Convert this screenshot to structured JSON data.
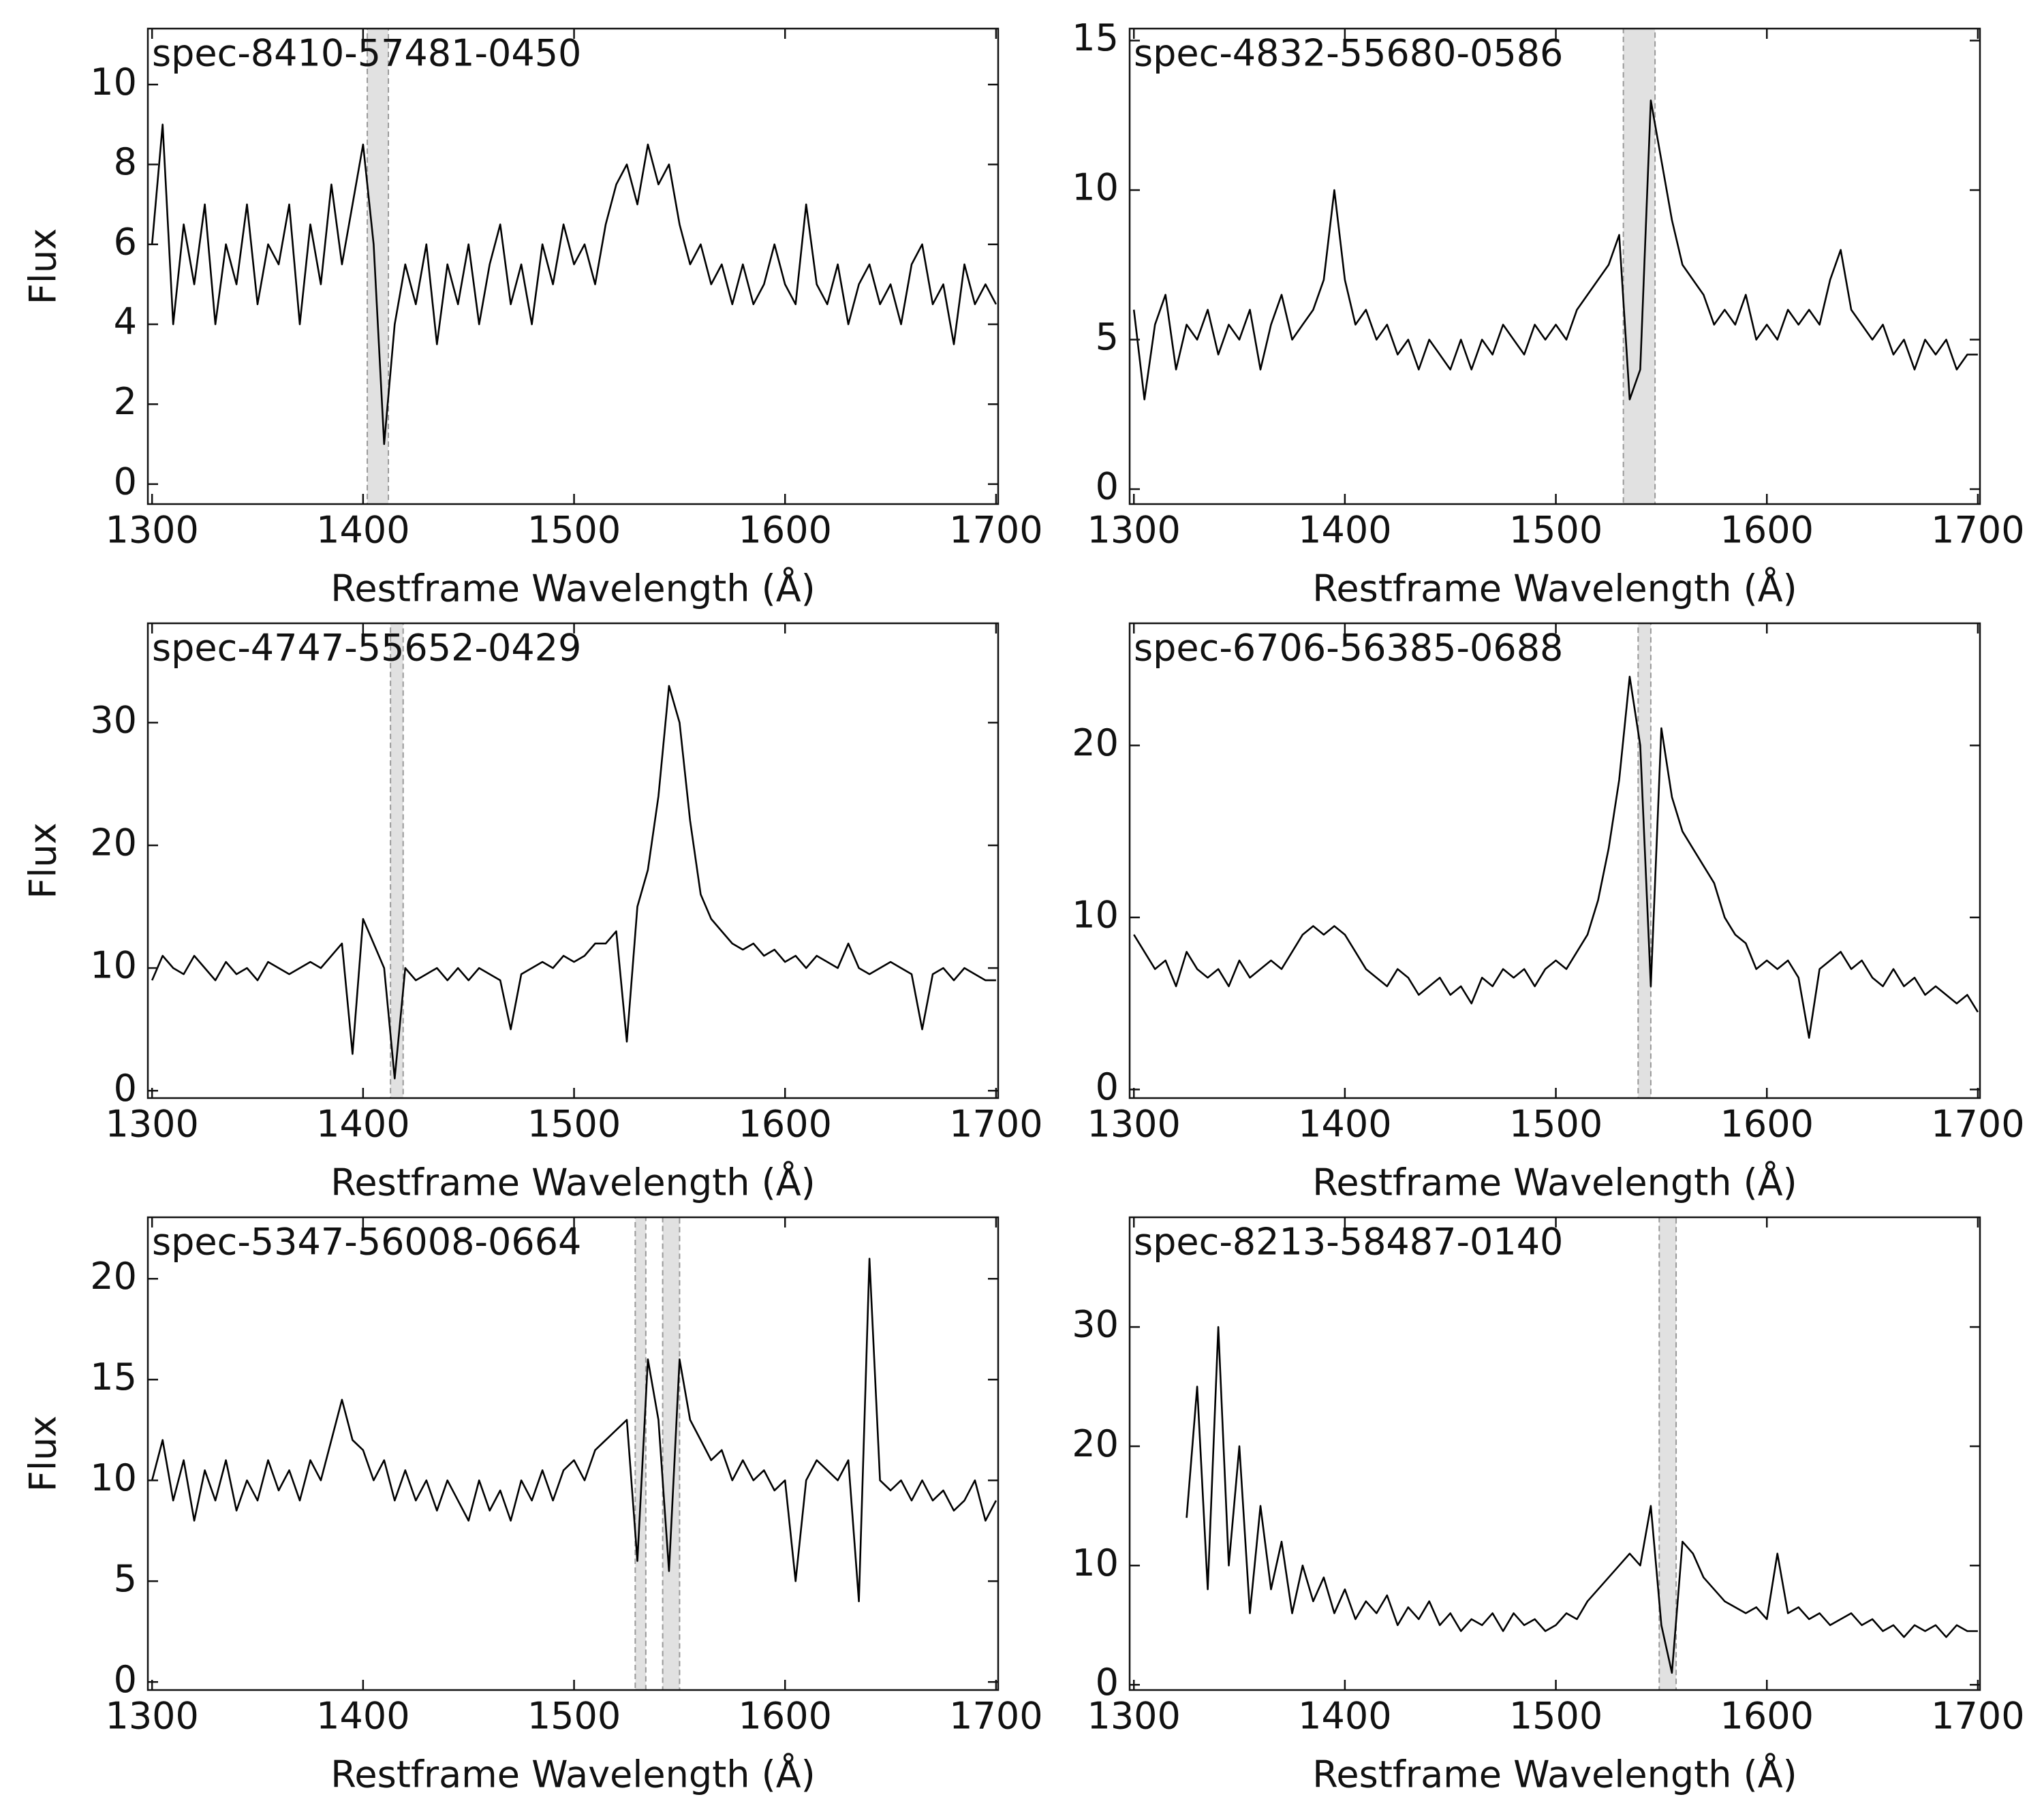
{
  "chart_data": [
    {
      "type": "line",
      "title": "spec-8410-57481-0450",
      "xlabel": "Restframe Wavelength (Å)",
      "ylabel": "Flux",
      "xlim": [
        1298,
        1701
      ],
      "ylim": [
        -0.5,
        11.4
      ],
      "xticks": [
        1300,
        1400,
        1500,
        1600,
        1700
      ],
      "yticks": [
        0,
        2,
        4,
        6,
        8,
        10
      ],
      "spans": [
        [
          1402,
          1412
        ]
      ],
      "x": [
        1300,
        1305,
        1310,
        1315,
        1320,
        1325,
        1330,
        1335,
        1340,
        1345,
        1350,
        1355,
        1360,
        1365,
        1370,
        1375,
        1380,
        1385,
        1390,
        1395,
        1400,
        1405,
        1410,
        1415,
        1420,
        1425,
        1430,
        1435,
        1440,
        1445,
        1450,
        1455,
        1460,
        1465,
        1470,
        1475,
        1480,
        1485,
        1490,
        1495,
        1500,
        1505,
        1510,
        1515,
        1520,
        1525,
        1530,
        1535,
        1540,
        1545,
        1550,
        1555,
        1560,
        1565,
        1570,
        1575,
        1580,
        1585,
        1590,
        1595,
        1600,
        1605,
        1610,
        1615,
        1620,
        1625,
        1630,
        1635,
        1640,
        1645,
        1650,
        1655,
        1660,
        1665,
        1670,
        1675,
        1680,
        1685,
        1690,
        1695,
        1700
      ],
      "series": [
        {
          "color": "#000000",
          "values": [
            6,
            9,
            4,
            6.5,
            5,
            7,
            4,
            6,
            5,
            7,
            4.5,
            6,
            5.5,
            7,
            4,
            6.5,
            5,
            7.5,
            5.5,
            7,
            8.5,
            6,
            1,
            4,
            5.5,
            4.5,
            6,
            3.5,
            5.5,
            4.5,
            6,
            4,
            5.5,
            6.5,
            4.5,
            5.5,
            4,
            6,
            5,
            6.5,
            5.5,
            6,
            5,
            6.5,
            7.5,
            8,
            7,
            8.5,
            7.5,
            8,
            6.5,
            5.5,
            6,
            5,
            5.5,
            4.5,
            5.5,
            4.5,
            5,
            6,
            5,
            4.5,
            7,
            5,
            4.5,
            5.5,
            4,
            5,
            5.5,
            4.5,
            5,
            4,
            5.5,
            6,
            4.5,
            5,
            3.5,
            5.5,
            4.5,
            5,
            4.5
          ]
        }
      ]
    },
    {
      "type": "line",
      "title": "spec-4832-55680-0586",
      "xlabel": "Restframe Wavelength (Å)",
      "xlim": [
        1298,
        1701
      ],
      "ylim": [
        -0.5,
        15.4
      ],
      "xticks": [
        1300,
        1400,
        1500,
        1600,
        1700
      ],
      "yticks": [
        0,
        5,
        10,
        15
      ],
      "spans": [
        [
          1532,
          1547
        ]
      ],
      "x": [
        1300,
        1305,
        1310,
        1315,
        1320,
        1325,
        1330,
        1335,
        1340,
        1345,
        1350,
        1355,
        1360,
        1365,
        1370,
        1375,
        1380,
        1385,
        1390,
        1395,
        1400,
        1405,
        1410,
        1415,
        1420,
        1425,
        1430,
        1435,
        1440,
        1445,
        1450,
        1455,
        1460,
        1465,
        1470,
        1475,
        1480,
        1485,
        1490,
        1495,
        1500,
        1505,
        1510,
        1515,
        1520,
        1525,
        1530,
        1535,
        1540,
        1545,
        1550,
        1555,
        1560,
        1565,
        1570,
        1575,
        1580,
        1585,
        1590,
        1595,
        1600,
        1605,
        1610,
        1615,
        1620,
        1625,
        1630,
        1635,
        1640,
        1645,
        1650,
        1655,
        1660,
        1665,
        1670,
        1675,
        1680,
        1685,
        1690,
        1695,
        1700
      ],
      "series": [
        {
          "color": "#000000",
          "values": [
            6,
            3,
            5.5,
            6.5,
            4,
            5.5,
            5,
            6,
            4.5,
            5.5,
            5,
            6,
            4,
            5.5,
            6.5,
            5,
            5.5,
            6,
            7,
            10,
            7,
            5.5,
            6,
            5,
            5.5,
            4.5,
            5,
            4,
            5,
            4.5,
            4,
            5,
            4,
            5,
            4.5,
            5.5,
            5,
            4.5,
            5.5,
            5,
            5.5,
            5,
            6,
            6.5,
            7,
            7.5,
            8.5,
            3,
            4,
            13,
            11,
            9,
            7.5,
            7,
            6.5,
            5.5,
            6,
            5.5,
            6.5,
            5,
            5.5,
            5,
            6,
            5.5,
            6,
            5.5,
            7,
            8,
            6,
            5.5,
            5,
            5.5,
            4.5,
            5,
            4,
            5,
            4.5,
            5,
            4,
            4.5,
            4.5
          ]
        }
      ]
    },
    {
      "type": "line",
      "title": "spec-4747-55652-0429",
      "xlabel": "Restframe Wavelength (Å)",
      "ylabel": "Flux",
      "xlim": [
        1298,
        1701
      ],
      "ylim": [
        -0.6,
        38.1
      ],
      "xticks": [
        1300,
        1400,
        1500,
        1600,
        1700
      ],
      "yticks": [
        0,
        10,
        20,
        30
      ],
      "spans": [
        [
          1413,
          1419
        ]
      ],
      "x": [
        1300,
        1305,
        1310,
        1315,
        1320,
        1325,
        1330,
        1335,
        1340,
        1345,
        1350,
        1355,
        1360,
        1365,
        1370,
        1375,
        1380,
        1385,
        1390,
        1395,
        1400,
        1405,
        1410,
        1415,
        1420,
        1425,
        1430,
        1435,
        1440,
        1445,
        1450,
        1455,
        1460,
        1465,
        1470,
        1475,
        1480,
        1485,
        1490,
        1495,
        1500,
        1505,
        1510,
        1515,
        1520,
        1525,
        1530,
        1535,
        1540,
        1545,
        1550,
        1555,
        1560,
        1565,
        1570,
        1575,
        1580,
        1585,
        1590,
        1595,
        1600,
        1605,
        1610,
        1615,
        1620,
        1625,
        1630,
        1635,
        1640,
        1645,
        1650,
        1655,
        1660,
        1665,
        1670,
        1675,
        1680,
        1685,
        1690,
        1695,
        1700
      ],
      "series": [
        {
          "color": "#000000",
          "values": [
            9,
            11,
            10,
            9.5,
            11,
            10,
            9,
            10.5,
            9.5,
            10,
            9,
            10.5,
            10,
            9.5,
            10,
            10.5,
            10,
            11,
            12,
            3,
            14,
            12,
            10,
            1,
            10,
            9,
            9.5,
            10,
            9,
            10,
            9,
            10,
            9.5,
            9,
            5,
            9.5,
            10,
            10.5,
            10,
            11,
            10.5,
            11,
            12,
            12,
            13,
            4,
            15,
            18,
            24,
            33,
            30,
            22,
            16,
            14,
            13,
            12,
            11.5,
            12,
            11,
            11.5,
            10.5,
            11,
            10,
            11,
            10.5,
            10,
            12,
            10,
            9.5,
            10,
            10.5,
            10,
            9.5,
            5,
            9.5,
            10,
            9,
            10,
            9.5,
            9,
            9
          ]
        }
      ]
    },
    {
      "type": "line",
      "title": "spec-6706-56385-0688",
      "xlabel": "Restframe Wavelength (Å)",
      "xlim": [
        1298,
        1701
      ],
      "ylim": [
        -0.5,
        27.1
      ],
      "xticks": [
        1300,
        1400,
        1500,
        1600,
        1700
      ],
      "yticks": [
        0,
        10,
        20
      ],
      "spans": [
        [
          1539,
          1545
        ]
      ],
      "x": [
        1300,
        1305,
        1310,
        1315,
        1320,
        1325,
        1330,
        1335,
        1340,
        1345,
        1350,
        1355,
        1360,
        1365,
        1370,
        1375,
        1380,
        1385,
        1390,
        1395,
        1400,
        1405,
        1410,
        1415,
        1420,
        1425,
        1430,
        1435,
        1440,
        1445,
        1450,
        1455,
        1460,
        1465,
        1470,
        1475,
        1480,
        1485,
        1490,
        1495,
        1500,
        1505,
        1510,
        1515,
        1520,
        1525,
        1530,
        1535,
        1540,
        1545,
        1550,
        1555,
        1560,
        1565,
        1570,
        1575,
        1580,
        1585,
        1590,
        1595,
        1600,
        1605,
        1610,
        1615,
        1620,
        1625,
        1630,
        1635,
        1640,
        1645,
        1650,
        1655,
        1660,
        1665,
        1670,
        1675,
        1680,
        1685,
        1690,
        1695,
        1700
      ],
      "series": [
        {
          "color": "#000000",
          "values": [
            9,
            8,
            7,
            7.5,
            6,
            8,
            7,
            6.5,
            7,
            6,
            7.5,
            6.5,
            7,
            7.5,
            7,
            8,
            9,
            9.5,
            9,
            9.5,
            9,
            8,
            7,
            6.5,
            6,
            7,
            6.5,
            5.5,
            6,
            6.5,
            5.5,
            6,
            5,
            6.5,
            6,
            7,
            6.5,
            7,
            6,
            7,
            7.5,
            7,
            8,
            9,
            11,
            14,
            18,
            24,
            20,
            6,
            21,
            17,
            15,
            14,
            13,
            12,
            10,
            9,
            8.5,
            7,
            7.5,
            7,
            7.5,
            6.5,
            3,
            7,
            7.5,
            8,
            7,
            7.5,
            6.5,
            6,
            7,
            6,
            6.5,
            5.5,
            6,
            5.5,
            5,
            5.5,
            4.5
          ]
        }
      ]
    },
    {
      "type": "line",
      "title": "spec-5347-56008-0664",
      "xlabel": "Restframe Wavelength (Å)",
      "ylabel": "Flux",
      "xlim": [
        1298,
        1701
      ],
      "ylim": [
        -0.4,
        23.05
      ],
      "xticks": [
        1300,
        1400,
        1500,
        1600,
        1700
      ],
      "yticks": [
        0,
        5,
        10,
        15,
        20
      ],
      "spans": [
        [
          1529,
          1534
        ],
        [
          1542,
          1550
        ]
      ],
      "x": [
        1300,
        1305,
        1310,
        1315,
        1320,
        1325,
        1330,
        1335,
        1340,
        1345,
        1350,
        1355,
        1360,
        1365,
        1370,
        1375,
        1380,
        1385,
        1390,
        1395,
        1400,
        1405,
        1410,
        1415,
        1420,
        1425,
        1430,
        1435,
        1440,
        1445,
        1450,
        1455,
        1460,
        1465,
        1470,
        1475,
        1480,
        1485,
        1490,
        1495,
        1500,
        1505,
        1510,
        1515,
        1520,
        1525,
        1530,
        1535,
        1540,
        1545,
        1550,
        1555,
        1560,
        1565,
        1570,
        1575,
        1580,
        1585,
        1590,
        1595,
        1600,
        1605,
        1610,
        1615,
        1620,
        1625,
        1630,
        1635,
        1640,
        1645,
        1650,
        1655,
        1660,
        1665,
        1670,
        1675,
        1680,
        1685,
        1690,
        1695,
        1700
      ],
      "series": [
        {
          "color": "#000000",
          "values": [
            10,
            12,
            9,
            11,
            8,
            10.5,
            9,
            11,
            8.5,
            10,
            9,
            11,
            9.5,
            10.5,
            9,
            11,
            10,
            12,
            14,
            12,
            11.5,
            10,
            11,
            9,
            10.5,
            9,
            10,
            8.5,
            10,
            9,
            8,
            10,
            8.5,
            9.5,
            8,
            10,
            9,
            10.5,
            9,
            10.5,
            11,
            10,
            11.5,
            12,
            12.5,
            13,
            6,
            16,
            13,
            5.5,
            16,
            13,
            12,
            11,
            11.5,
            10,
            11,
            10,
            10.5,
            9.5,
            10,
            5,
            10,
            11,
            10.5,
            10,
            11,
            4,
            21,
            10,
            9.5,
            10,
            9,
            10,
            9,
            9.5,
            8.5,
            9,
            10,
            8,
            9
          ]
        }
      ]
    },
    {
      "type": "line",
      "title": "spec-8213-58487-0140",
      "xlabel": "Restframe Wavelength (Å)",
      "xlim": [
        1298,
        1701
      ],
      "ylim": [
        -0.44,
        39.2
      ],
      "xticks": [
        1300,
        1400,
        1500,
        1600,
        1700
      ],
      "yticks": [
        0,
        10,
        20,
        30
      ],
      "spans": [
        [
          1549,
          1557
        ]
      ],
      "x": [
        1325,
        1330,
        1335,
        1340,
        1345,
        1350,
        1355,
        1360,
        1365,
        1370,
        1375,
        1380,
        1385,
        1390,
        1395,
        1400,
        1405,
        1410,
        1415,
        1420,
        1425,
        1430,
        1435,
        1440,
        1445,
        1450,
        1455,
        1460,
        1465,
        1470,
        1475,
        1480,
        1485,
        1490,
        1495,
        1500,
        1505,
        1510,
        1515,
        1520,
        1525,
        1530,
        1535,
        1540,
        1545,
        1550,
        1555,
        1560,
        1565,
        1570,
        1575,
        1580,
        1585,
        1590,
        1595,
        1600,
        1605,
        1610,
        1615,
        1620,
        1625,
        1630,
        1635,
        1640,
        1645,
        1650,
        1655,
        1660,
        1665,
        1670,
        1675,
        1680,
        1685,
        1690,
        1695,
        1700
      ],
      "series": [
        {
          "color": "#000000",
          "values": [
            14,
            25,
            8,
            30,
            10,
            20,
            6,
            15,
            8,
            12,
            6,
            10,
            7,
            9,
            6,
            8,
            5.5,
            7,
            6,
            7.5,
            5,
            6.5,
            5.5,
            7,
            5,
            6,
            4.5,
            5.5,
            5,
            6,
            4.5,
            6,
            5,
            5.5,
            4.5,
            5,
            6,
            5.5,
            7,
            8,
            9,
            10,
            11,
            10,
            15,
            5,
            1,
            12,
            11,
            9,
            8,
            7,
            6.5,
            6,
            6.5,
            5.5,
            11,
            6,
            6.5,
            5.5,
            6,
            5,
            5.5,
            6,
            5,
            5.5,
            4.5,
            5,
            4,
            5,
            4.5,
            5,
            4,
            5,
            4.5,
            4.5
          ]
        }
      ]
    }
  ]
}
